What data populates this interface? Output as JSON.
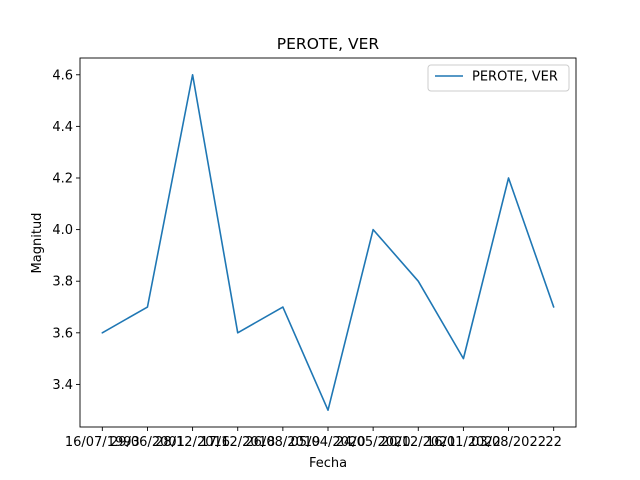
{
  "chart_data": {
    "type": "line",
    "title": "PEROTE, VER",
    "xlabel": "Fecha",
    "ylabel": "Magnitud",
    "categories": [
      "16/07/1993",
      "29/06/2001",
      "28/12/2016",
      "17/12/2018",
      "26/08/2019",
      "05/04/2020",
      "24/05/2020",
      "20/12/2021",
      "16/01/2022",
      "03/08/2022",
      "22"
    ],
    "series": [
      {
        "name": "PEROTE, VER",
        "values": [
          3.6,
          3.7,
          4.6,
          3.6,
          3.7,
          3.3,
          4.0,
          3.8,
          3.5,
          4.2,
          3.7
        ],
        "color": "#1f77b4"
      }
    ],
    "ylim": [
      3.235,
      4.665
    ],
    "yticks": [
      3.4,
      3.6,
      3.8,
      4.0,
      4.2,
      4.4,
      4.6
    ],
    "yticklabels": [
      "3.4",
      "3.6",
      "3.8",
      "4.0",
      "4.2",
      "4.4",
      "4.6"
    ],
    "xticklabels": [
      "16/07/1993",
      "29/06/2001",
      "28/12/2016",
      "17/12/2018",
      "26/08/2019",
      "05/04/2020",
      "24/05/2020",
      "20/12/2021",
      "16/01/2022",
      "03/08/2022",
      "22"
    ],
    "legend_location": "upper-right",
    "grid": false
  }
}
